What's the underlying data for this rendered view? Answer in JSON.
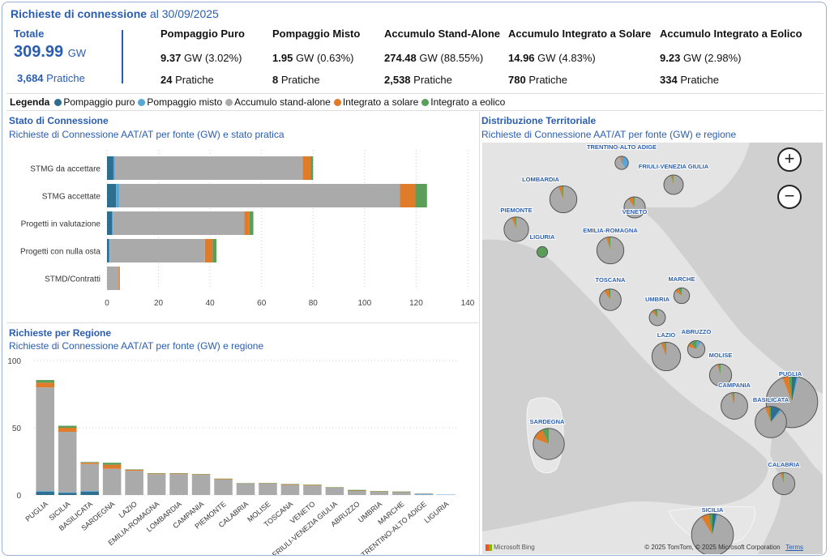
{
  "header": {
    "title_bold": "Richieste di connessione",
    "title_rest": " al 30/09/2025"
  },
  "kpi": {
    "total_label": "Totale",
    "total_value": "309.99",
    "total_unit": "GW",
    "total_pratiche_value": "3,684",
    "pratiche_word": "Pratiche",
    "gw_word": "GW",
    "items": [
      {
        "title": "Pompaggio Puro",
        "value": "9.37",
        "pct": "(3.02%)",
        "pratiche": "24"
      },
      {
        "title": "Pompaggio Misto",
        "value": "1.95",
        "pct": "(0.63%)",
        "pratiche": "8"
      },
      {
        "title": "Accumulo Stand-Alone",
        "value": "274.48",
        "pct": "(88.55%)",
        "pratiche": "2,538"
      },
      {
        "title": "Accumulo Integrato a Solare",
        "value": "14.96",
        "pct": "(4.83%)",
        "pratiche": "780"
      },
      {
        "title": "Accumulo Integrato a Eolico",
        "value": "9.23",
        "pct": "(2.98%)",
        "pratiche": "334"
      }
    ]
  },
  "legend": {
    "title": "Legenda",
    "items": [
      {
        "label": "Pompaggio puro",
        "color": "#2e6e8e"
      },
      {
        "label": "Pompaggio misto",
        "color": "#5aa5d6"
      },
      {
        "label": "Accumulo stand-alone",
        "color": "#aaaaaa"
      },
      {
        "label": "Integrato a solare",
        "color": "#e07b2a"
      },
      {
        "label": "Integrato a eolico",
        "color": "#5a9e5a"
      }
    ]
  },
  "panels": {
    "stato_title": "Stato di Connessione",
    "stato_sub": "Richieste di Connessione AAT/AT per fonte (GW) e stato pratica",
    "regione_title": "Richieste per Regione",
    "regione_sub": "Richieste di Connessione AAT/AT per fonte (GW) e regione",
    "map_title": "Distribuzione Territoriale",
    "map_sub": "Richieste di Connessione AAT/AT per fonte (GW) e regione"
  },
  "chart_data": [
    {
      "type": "bar",
      "orientation": "horizontal",
      "stacked": true,
      "categories": [
        "STMG da accettare",
        "STMG accettate",
        "Progetti in valutazione",
        "Progetti con nulla osta",
        "STMD/Contratti"
      ],
      "series": [
        {
          "name": "Pompaggio puro",
          "values": [
            2.5,
            3.5,
            2,
            0.8,
            0
          ]
        },
        {
          "name": "Pompaggio misto",
          "values": [
            0.5,
            1.2,
            0.3,
            0.2,
            0
          ]
        },
        {
          "name": "Accumulo stand-alone",
          "values": [
            73,
            109,
            51,
            37,
            4.5
          ]
        },
        {
          "name": "Integrato a solare",
          "values": [
            3,
            6,
            2,
            3,
            0.3
          ]
        },
        {
          "name": "Integrato a eolico",
          "values": [
            1,
            4.5,
            1.5,
            1.5,
            0.2
          ]
        }
      ],
      "xlim": [
        0,
        140
      ],
      "xticks": [
        0,
        20,
        40,
        60,
        80,
        100,
        120,
        140
      ],
      "grid": "vertical-dotted"
    },
    {
      "type": "bar",
      "stacked": true,
      "categories": [
        "PUGLIA",
        "SICILIA",
        "BASILICATA",
        "SARDEGNA",
        "LAZIO",
        "EMILIA-ROMAGNA",
        "LOMBARDIA",
        "CAMPANIA",
        "PIEMONTE",
        "CALABRIA",
        "MOLISE",
        "TOSCANA",
        "VENETO",
        "FRIULI-VENEZIA GIULIA",
        "ABRUZZO",
        "UMBRIA",
        "MARCHE",
        "TRENTINO-ALTO ADIGE",
        "LIGURIA"
      ],
      "series": [
        {
          "name": "Pompaggio puro",
          "values": [
            2.5,
            1.5,
            2.5,
            0,
            0,
            0,
            0,
            0,
            0,
            0,
            0,
            0,
            0,
            0,
            0,
            0,
            0,
            0,
            0
          ]
        },
        {
          "name": "Pompaggio misto",
          "values": [
            0.5,
            0.5,
            0.5,
            0,
            0,
            0,
            0,
            0,
            0,
            0,
            0,
            0,
            0,
            0,
            0,
            0,
            0,
            0.5,
            0.3
          ]
        },
        {
          "name": "Accumulo stand-alone",
          "values": [
            77,
            45,
            20,
            19.5,
            18,
            15.5,
            15.5,
            15,
            11.5,
            8.5,
            8.5,
            7.5,
            7,
            5.5,
            3,
            2.5,
            2.2,
            0.7,
            0
          ]
        },
        {
          "name": "Integrato a solare",
          "values": [
            3.5,
            3,
            1,
            3,
            0.8,
            0.5,
            0.5,
            0.3,
            0.5,
            0.2,
            0.2,
            0.5,
            0.5,
            0.2,
            0.3,
            0.2,
            0.2,
            0,
            0
          ]
        },
        {
          "name": "Integrato a eolico",
          "values": [
            2,
            1.5,
            0.5,
            1.5,
            0.3,
            0.2,
            0.2,
            0.3,
            0.2,
            0.1,
            0.2,
            0.2,
            0.2,
            0.1,
            0.5,
            0.2,
            0.2,
            0,
            0
          ]
        }
      ],
      "ylim": [
        0,
        100
      ],
      "yticks": [
        0,
        50,
        100
      ]
    }
  ],
  "map": {
    "regions": [
      {
        "name": "TRENTINO-ALTO ADIGE",
        "gw": 1.2,
        "mix": [
          0,
          0.4,
          0.55,
          0.05,
          0
        ]
      },
      {
        "name": "LOMBARDIA",
        "gw": 16.2,
        "mix": [
          0,
          0,
          0.94,
          0.04,
          0.02
        ]
      },
      {
        "name": "FRIULI-VENEZIA GIULIA",
        "gw": 5.8,
        "mix": [
          0,
          0,
          0.95,
          0.03,
          0.02
        ]
      },
      {
        "name": "VENETO",
        "gw": 7.7,
        "mix": [
          0,
          0,
          0.9,
          0.07,
          0.03
        ]
      },
      {
        "name": "PIEMONTE",
        "gw": 12.2,
        "mix": [
          0,
          0,
          0.94,
          0.04,
          0.02
        ]
      },
      {
        "name": "LIGURIA",
        "gw": 0.3,
        "mix": [
          0,
          0,
          0,
          0,
          1
        ]
      },
      {
        "name": "EMILIA-ROMAGNA",
        "gw": 16.2,
        "mix": [
          0,
          0,
          0.95,
          0.03,
          0.02
        ]
      },
      {
        "name": "TOSCANA",
        "gw": 8.2,
        "mix": [
          0,
          0,
          0.9,
          0.07,
          0.03
        ]
      },
      {
        "name": "MARCHE",
        "gw": 2.6,
        "mix": [
          0,
          0,
          0.85,
          0.08,
          0.07
        ]
      },
      {
        "name": "UMBRIA",
        "gw": 2.9,
        "mix": [
          0,
          0,
          0.88,
          0.06,
          0.06
        ]
      },
      {
        "name": "LAZIO",
        "gw": 19.1,
        "mix": [
          0,
          0,
          0.94,
          0.04,
          0.02
        ]
      },
      {
        "name": "ABRUZZO",
        "gw": 3.8,
        "mix": [
          0,
          0.1,
          0.7,
          0.08,
          0.12
        ]
      },
      {
        "name": "MOLISE",
        "gw": 8.9,
        "mix": [
          0,
          0,
          0.95,
          0.02,
          0.03
        ]
      },
      {
        "name": "CAMPANIA",
        "gw": 15.6,
        "mix": [
          0,
          0,
          0.96,
          0.02,
          0.02
        ]
      },
      {
        "name": "PUGLIA",
        "gw": 85.5,
        "mix": [
          0.03,
          0.01,
          0.9,
          0.04,
          0.02
        ]
      },
      {
        "name": "BASILICATA",
        "gw": 24.5,
        "mix": [
          0.1,
          0.02,
          0.82,
          0.04,
          0.02
        ]
      },
      {
        "name": "SARDEGNA",
        "gw": 24,
        "mix": [
          0,
          0,
          0.81,
          0.12,
          0.07
        ]
      },
      {
        "name": "CALABRIA",
        "gw": 8.9,
        "mix": [
          0,
          0,
          0.95,
          0.03,
          0.02
        ]
      },
      {
        "name": "SICILIA",
        "gw": 51.5,
        "mix": [
          0.03,
          0.01,
          0.87,
          0.06,
          0.03
        ]
      }
    ],
    "zoom_in": "+",
    "zoom_out": "−",
    "attribution": "© 2025 TomTom, © 2025 Microsoft Corporation",
    "terms": "Terms",
    "bing": "Microsoft Bing"
  }
}
